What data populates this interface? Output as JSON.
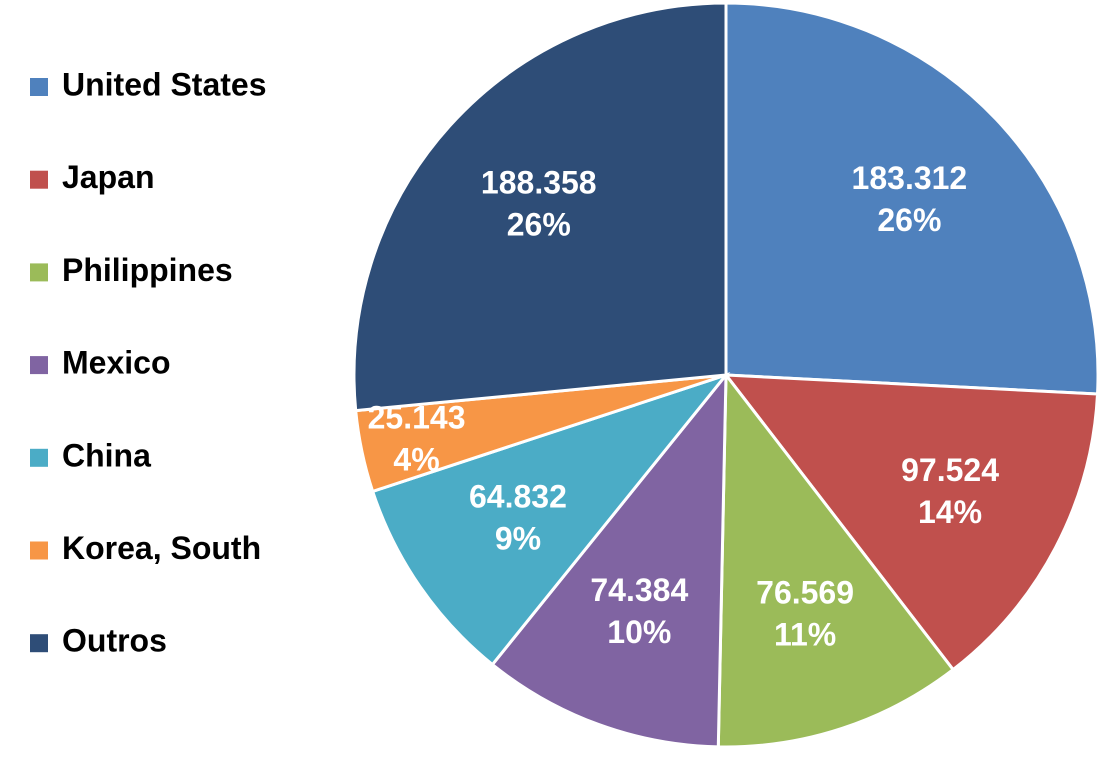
{
  "chart_data": {
    "type": "pie",
    "categories": [
      "United States",
      "Japan",
      "Philippines",
      "Mexico",
      "China",
      "Korea, South",
      "Outros"
    ],
    "values": [
      183.312,
      97.524,
      76.569,
      74.384,
      64.832,
      25.143,
      188.358
    ],
    "percent_labels": [
      "26%",
      "14%",
      "11%",
      "10%",
      "9%",
      "4%",
      "26%"
    ],
    "colors": [
      "#4f81bd",
      "#c0504d",
      "#9bbb59",
      "#8064a2",
      "#4bacc6",
      "#f79646",
      "#2e4d77"
    ],
    "legend": "left"
  }
}
